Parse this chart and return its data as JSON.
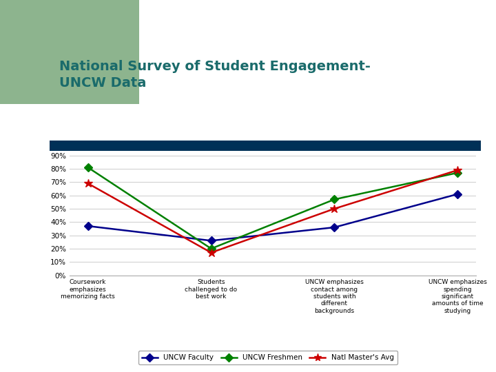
{
  "title_line1": "National Survey of Student Engagement-",
  "title_line2": "UNCW Data",
  "title_color": "#1a6b6b",
  "bg_color": "#ffffff",
  "green_rect_color": "#8db48e",
  "navy_bar_color": "#003057",
  "categories": [
    "Coursework\nemphasizes\nmemorizing facts",
    "Students\nchallenged to do\nbest work",
    "UNCW emphasizes\ncontact among\nstudents with\ndifferent\nbackgrounds",
    "UNCW emphasizes\nspending\nsignificant\namounts of time\nstudying"
  ],
  "faculty_values": [
    0.37,
    0.26,
    0.36,
    0.61
  ],
  "freshmen_values": [
    0.81,
    0.2,
    0.57,
    0.77
  ],
  "masters_values": [
    0.69,
    0.17,
    0.5,
    0.79
  ],
  "faculty_color": "#00008B",
  "freshmen_color": "#008000",
  "masters_color": "#CC0000",
  "faculty_label": "UNCW Faculty",
  "freshmen_label": "UNCW Freshmen",
  "masters_label": "Natl Master's Avg",
  "yticks": [
    0.0,
    0.1,
    0.2,
    0.3,
    0.4,
    0.5,
    0.6,
    0.7,
    0.8,
    0.9
  ],
  "ytick_labels": [
    "0%",
    "10%",
    "20%",
    "30%",
    "40%",
    "50%",
    "60%",
    "70%",
    "80%",
    "90%"
  ],
  "ylim": [
    0.0,
    0.95
  ],
  "chart_bg": "#ffffff",
  "grid_color": "#cccccc"
}
